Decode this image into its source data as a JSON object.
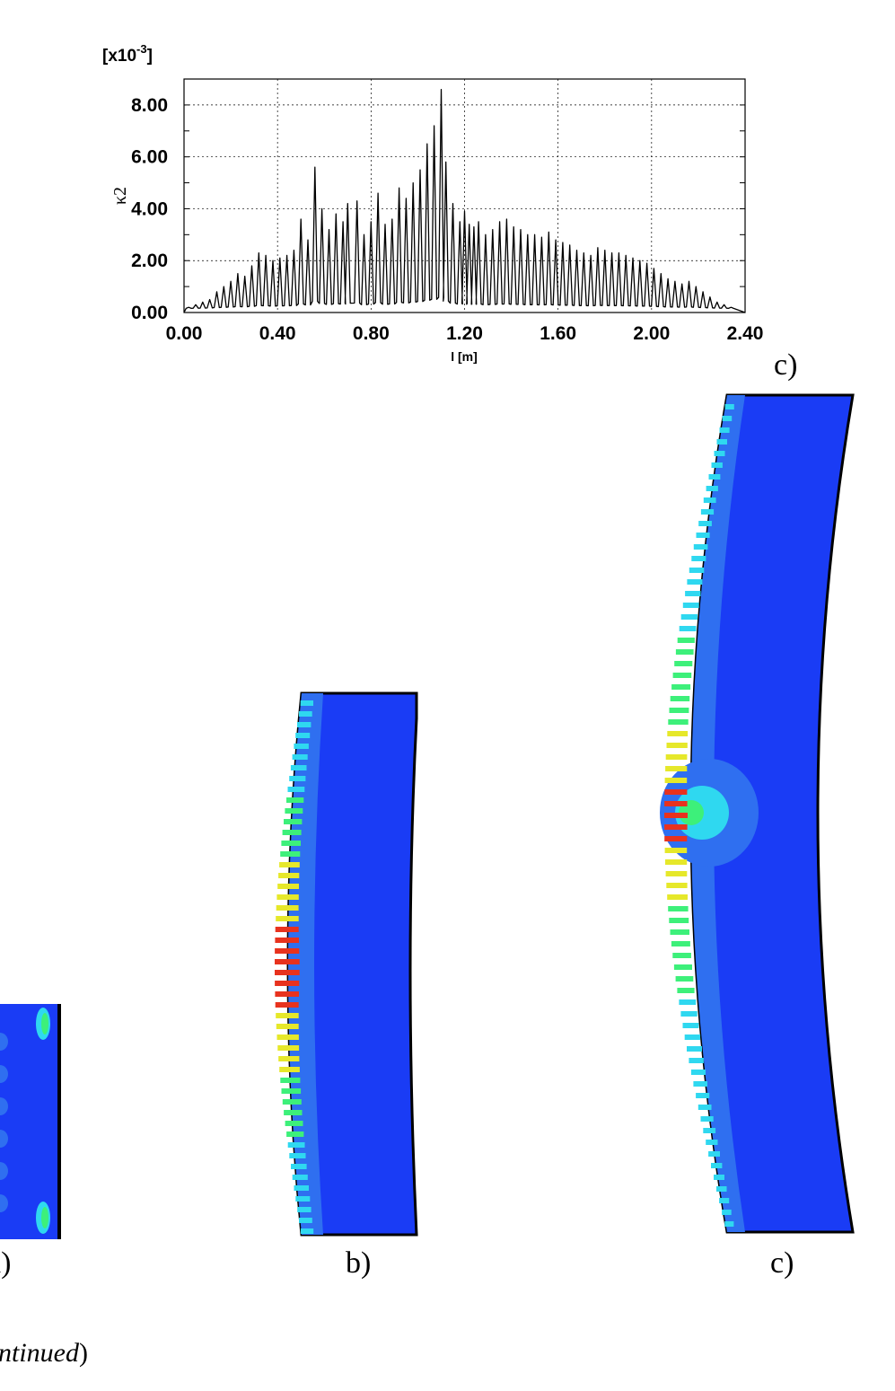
{
  "chart_data": {
    "type": "line",
    "multiplier_label": "[x10",
    "multiplier_exponent": "-3",
    "multiplier_close": "]",
    "ylabel": "κ2",
    "xlabel": "l [m]",
    "xlim": [
      0.0,
      2.4
    ],
    "ylim": [
      0.0,
      9.0
    ],
    "x_ticks": [
      "0.00",
      "0.40",
      "0.80",
      "1.20",
      "1.60",
      "2.00",
      "2.40"
    ],
    "y_ticks": [
      "0.00",
      "2.00",
      "4.00",
      "6.00",
      "8.00"
    ],
    "grid": true,
    "series": [
      {
        "peak_x": [
          0.02,
          0.05,
          0.08,
          0.11,
          0.14,
          0.17,
          0.2,
          0.23,
          0.26,
          0.29,
          0.32,
          0.35,
          0.38,
          0.41,
          0.44,
          0.47,
          0.5,
          0.53,
          0.56,
          0.59,
          0.62,
          0.65,
          0.68,
          0.7,
          0.74,
          0.77,
          0.8,
          0.83,
          0.86,
          0.89,
          0.92,
          0.95,
          0.98,
          1.01,
          1.04,
          1.07,
          1.1,
          1.12,
          1.15,
          1.18,
          1.2,
          1.22,
          1.24,
          1.26,
          1.29,
          1.32,
          1.35,
          1.38,
          1.41,
          1.44,
          1.47,
          1.5,
          1.53,
          1.56,
          1.59,
          1.62,
          1.65,
          1.68,
          1.71,
          1.74,
          1.77,
          1.8,
          1.83,
          1.86,
          1.89,
          1.92,
          1.95,
          1.98,
          2.01,
          2.04,
          2.07,
          2.1,
          2.13,
          2.16,
          2.19,
          2.22,
          2.25,
          2.28,
          2.31,
          2.34
        ],
        "peak_y": [
          0.2,
          0.3,
          0.4,
          0.5,
          0.8,
          1.0,
          1.2,
          1.5,
          1.4,
          1.8,
          2.3,
          2.2,
          2.0,
          2.1,
          2.2,
          2.4,
          3.6,
          2.8,
          5.6,
          4.0,
          3.2,
          3.8,
          3.5,
          4.2,
          4.3,
          3.0,
          3.5,
          4.6,
          3.4,
          3.6,
          4.8,
          4.4,
          5.0,
          5.5,
          6.5,
          7.2,
          8.6,
          5.8,
          4.2,
          3.5,
          3.9,
          3.4,
          3.3,
          3.5,
          3.0,
          3.2,
          3.5,
          3.6,
          3.3,
          3.2,
          3.0,
          3.0,
          2.9,
          3.1,
          2.8,
          2.7,
          2.6,
          2.4,
          2.3,
          2.2,
          2.5,
          2.4,
          2.3,
          2.3,
          2.2,
          2.1,
          2.0,
          1.9,
          1.7,
          1.5,
          1.3,
          1.2,
          1.1,
          1.2,
          1.0,
          0.8,
          0.6,
          0.4,
          0.3,
          0.2
        ],
        "name": ""
      }
    ]
  },
  "captions": {
    "chart_panel": "c)",
    "panel_a": "a)",
    "panel_b": "b)",
    "panel_c": "c)",
    "figure_note_italic": "ntinued",
    "figure_note_close": ")"
  },
  "colors": {
    "deep_blue": "#1a3cf5",
    "mid_blue": "#2f6ff0",
    "cyan": "#2fd8f0",
    "green": "#3df07a",
    "yellow": "#e6e82a",
    "red": "#e8321e",
    "outline": "#000000"
  }
}
